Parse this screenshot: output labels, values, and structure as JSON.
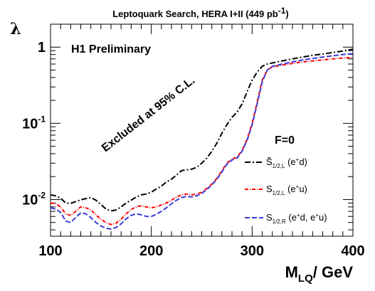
{
  "chart_data": {
    "type": "line",
    "title": "Leptoquark Search, HERA I+II (449 pb",
    "title_sup": "-1",
    "title_tail": ")",
    "xlabel_main": "M",
    "xlabel_sub": "LQ",
    "xlabel_tail": "/ GeV",
    "ylabel": "λ",
    "xlim": [
      100,
      400
    ],
    "ylim": [
      0.0033,
      2.0
    ],
    "yscale": "log",
    "x_ticks": [
      "100",
      "200",
      "300",
      "400"
    ],
    "y_ticks": [
      {
        "base": "1",
        "exp": ""
      },
      {
        "base": "10",
        "exp": "-1"
      },
      {
        "base": "10",
        "exp": "-2"
      }
    ],
    "annotations": {
      "experiment": "H1 Preliminary",
      "excluded": "Excluded at 95% C.L.",
      "coupling": "F=0"
    },
    "series": [
      {
        "name": "S̃",
        "name_sub": "1/2,L",
        "name_tail": " (e",
        "name_sup": "+",
        "name_end": "d)",
        "color": "#000000",
        "dash": "8,3,2,3",
        "points": [
          [
            100,
            0.0115
          ],
          [
            105,
            0.0112
          ],
          [
            110,
            0.0104
          ],
          [
            115,
            0.009
          ],
          [
            120,
            0.0089
          ],
          [
            125,
            0.0094
          ],
          [
            130,
            0.0099
          ],
          [
            135,
            0.0103
          ],
          [
            140,
            0.0106
          ],
          [
            145,
            0.0098
          ],
          [
            150,
            0.0086
          ],
          [
            155,
            0.0075
          ],
          [
            160,
            0.0071
          ],
          [
            165,
            0.0073
          ],
          [
            170,
            0.008
          ],
          [
            175,
            0.009
          ],
          [
            180,
            0.0098
          ],
          [
            185,
            0.0108
          ],
          [
            190,
            0.0115
          ],
          [
            195,
            0.0118
          ],
          [
            200,
            0.0125
          ],
          [
            205,
            0.0138
          ],
          [
            210,
            0.015
          ],
          [
            215,
            0.017
          ],
          [
            220,
            0.0185
          ],
          [
            225,
            0.021
          ],
          [
            230,
            0.024
          ],
          [
            235,
            0.0245
          ],
          [
            240,
            0.025
          ],
          [
            245,
            0.0265
          ],
          [
            250,
            0.03
          ],
          [
            255,
            0.035
          ],
          [
            260,
            0.043
          ],
          [
            265,
            0.055
          ],
          [
            270,
            0.074
          ],
          [
            275,
            0.096
          ],
          [
            280,
            0.12
          ],
          [
            285,
            0.14
          ],
          [
            290,
            0.18
          ],
          [
            295,
            0.26
          ],
          [
            300,
            0.37
          ],
          [
            305,
            0.47
          ],
          [
            310,
            0.56
          ],
          [
            315,
            0.6
          ],
          [
            320,
            0.62
          ],
          [
            330,
            0.66
          ],
          [
            340,
            0.7
          ],
          [
            350,
            0.74
          ],
          [
            360,
            0.78
          ],
          [
            370,
            0.81
          ],
          [
            380,
            0.85
          ],
          [
            390,
            0.89
          ],
          [
            400,
            0.94
          ]
        ]
      },
      {
        "name": "S",
        "name_sub": "1/2,L",
        "name_tail": " (e",
        "name_sup": "+",
        "name_end": "u)",
        "color": "#ff0000",
        "dash": "5,2,1,2",
        "points": [
          [
            100,
            0.009
          ],
          [
            105,
            0.0088
          ],
          [
            110,
            0.008
          ],
          [
            115,
            0.0065
          ],
          [
            120,
            0.0062
          ],
          [
            125,
            0.007
          ],
          [
            130,
            0.008
          ],
          [
            135,
            0.0078
          ],
          [
            140,
            0.0073
          ],
          [
            145,
            0.0063
          ],
          [
            150,
            0.0055
          ],
          [
            155,
            0.005
          ],
          [
            160,
            0.0047
          ],
          [
            165,
            0.0049
          ],
          [
            170,
            0.0055
          ],
          [
            175,
            0.0065
          ],
          [
            180,
            0.0074
          ],
          [
            185,
            0.008
          ],
          [
            190,
            0.0083
          ],
          [
            195,
            0.008
          ],
          [
            200,
            0.0078
          ],
          [
            205,
            0.008
          ],
          [
            210,
            0.0085
          ],
          [
            215,
            0.009
          ],
          [
            220,
            0.0098
          ],
          [
            225,
            0.0108
          ],
          [
            230,
            0.0115
          ],
          [
            235,
            0.0118
          ],
          [
            240,
            0.0115
          ],
          [
            245,
            0.0118
          ],
          [
            250,
            0.0125
          ],
          [
            255,
            0.014
          ],
          [
            260,
            0.016
          ],
          [
            265,
            0.019
          ],
          [
            270,
            0.024
          ],
          [
            275,
            0.03
          ],
          [
            280,
            0.034
          ],
          [
            285,
            0.036
          ],
          [
            290,
            0.044
          ],
          [
            295,
            0.062
          ],
          [
            300,
            0.1
          ],
          [
            305,
            0.19
          ],
          [
            310,
            0.37
          ],
          [
            315,
            0.5
          ],
          [
            320,
            0.55
          ],
          [
            330,
            0.58
          ],
          [
            340,
            0.61
          ],
          [
            350,
            0.64
          ],
          [
            360,
            0.66
          ],
          [
            370,
            0.68
          ],
          [
            380,
            0.7
          ],
          [
            390,
            0.72
          ],
          [
            400,
            0.73
          ]
        ]
      },
      {
        "name": "S",
        "name_sub": "1/2,R",
        "name_tail": " (e",
        "name_sup": "+",
        "name_end": "d, e",
        "name_sup2": "+",
        "name_end2": "u)",
        "color": "#3b3bd9",
        "dash": "7,3",
        "points": [
          [
            100,
            0.0078
          ],
          [
            105,
            0.0075
          ],
          [
            110,
            0.0068
          ],
          [
            115,
            0.0052
          ],
          [
            120,
            0.005
          ],
          [
            125,
            0.0058
          ],
          [
            130,
            0.0067
          ],
          [
            135,
            0.0065
          ],
          [
            140,
            0.0058
          ],
          [
            145,
            0.005
          ],
          [
            150,
            0.0045
          ],
          [
            155,
            0.0042
          ],
          [
            160,
            0.0041
          ],
          [
            165,
            0.0043
          ],
          [
            170,
            0.0048
          ],
          [
            175,
            0.0056
          ],
          [
            180,
            0.0062
          ],
          [
            185,
            0.0065
          ],
          [
            190,
            0.0063
          ],
          [
            195,
            0.006
          ],
          [
            200,
            0.006
          ],
          [
            205,
            0.0064
          ],
          [
            210,
            0.007
          ],
          [
            215,
            0.0078
          ],
          [
            220,
            0.0088
          ],
          [
            225,
            0.0098
          ],
          [
            230,
            0.0106
          ],
          [
            235,
            0.011
          ],
          [
            240,
            0.0108
          ],
          [
            245,
            0.0112
          ],
          [
            250,
            0.012
          ],
          [
            255,
            0.0135
          ],
          [
            260,
            0.0155
          ],
          [
            265,
            0.0185
          ],
          [
            270,
            0.023
          ],
          [
            275,
            0.029
          ],
          [
            280,
            0.033
          ],
          [
            285,
            0.035
          ],
          [
            290,
            0.043
          ],
          [
            295,
            0.06
          ],
          [
            300,
            0.095
          ],
          [
            305,
            0.18
          ],
          [
            310,
            0.35
          ],
          [
            315,
            0.5
          ],
          [
            320,
            0.56
          ],
          [
            330,
            0.6
          ],
          [
            340,
            0.64
          ],
          [
            350,
            0.68
          ],
          [
            360,
            0.71
          ],
          [
            370,
            0.74
          ],
          [
            380,
            0.77
          ],
          [
            390,
            0.8
          ],
          [
            400,
            0.82
          ]
        ]
      }
    ],
    "grid": false,
    "legend_position": "lower-right"
  }
}
